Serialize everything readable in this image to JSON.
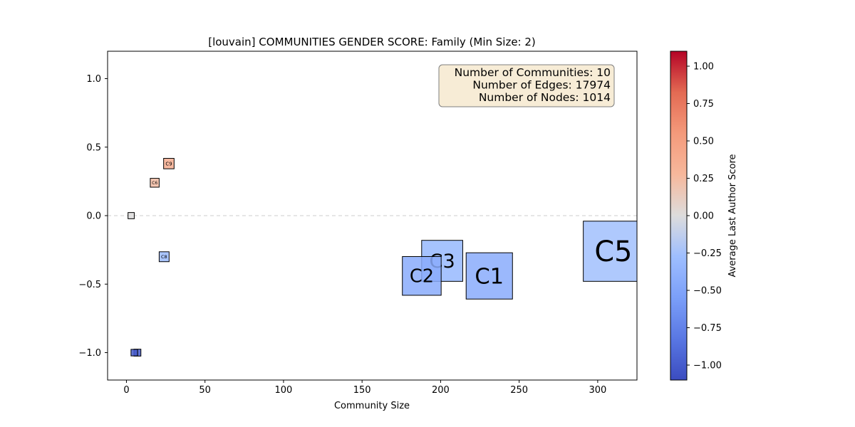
{
  "chart_data": {
    "type": "scatter",
    "marker": "square",
    "title": "[louvain] COMMUNITIES GENDER SCORE: Family (Min Size: 2)",
    "xlabel": "Community Size",
    "ylabel": "",
    "xlim": [
      -12,
      325
    ],
    "ylim": [
      -1.2,
      1.2
    ],
    "xticks": [
      0,
      50,
      100,
      150,
      200,
      250,
      300
    ],
    "yticks": [
      -1.0,
      -0.5,
      0.0,
      0.5,
      1.0
    ],
    "ytick_labels": [
      "−1.0",
      "−0.5",
      "0.0",
      "0.5",
      "1.0"
    ],
    "reference_line": {
      "y": 0.0,
      "style": "dashed",
      "color": "#cccccc"
    },
    "points": [
      {
        "label": "C5",
        "size": 310,
        "score": -0.26
      },
      {
        "label": "C1",
        "size": 231,
        "score": -0.44
      },
      {
        "label": "C2",
        "size": 188,
        "score": -0.44
      },
      {
        "label": "C3",
        "size": 201,
        "score": -0.33
      },
      {
        "label": "C9",
        "size": 27,
        "score": 0.38
      },
      {
        "label": "C6",
        "size": 18,
        "score": 0.24
      },
      {
        "label": "C8",
        "size": 24,
        "score": -0.3
      },
      {
        "label": "",
        "size": 3,
        "score": 0.0
      },
      {
        "label": "",
        "size": 5,
        "score": -1.0
      },
      {
        "label": "",
        "size": 7,
        "score": -1.0
      }
    ],
    "annotation": {
      "lines": [
        "Number of Communities: 10",
        "Number of Edges: 17974",
        "Number of Nodes: 1014"
      ],
      "placement": "top-right",
      "background": "#f7ecd6",
      "border": "#7f7f7f"
    },
    "colorbar": {
      "label": "Average Last Author Score",
      "colormap": "coolwarm",
      "range": [
        -1.1,
        1.1
      ],
      "ticks": [
        -1.0,
        -0.75,
        -0.5,
        -0.25,
        0.0,
        0.25,
        0.5,
        0.75,
        1.0
      ],
      "tick_labels": [
        "−1.00",
        "−0.75",
        "−0.50",
        "−0.25",
        "0.00",
        "0.25",
        "0.50",
        "0.75",
        "1.00"
      ]
    },
    "grid": false
  }
}
